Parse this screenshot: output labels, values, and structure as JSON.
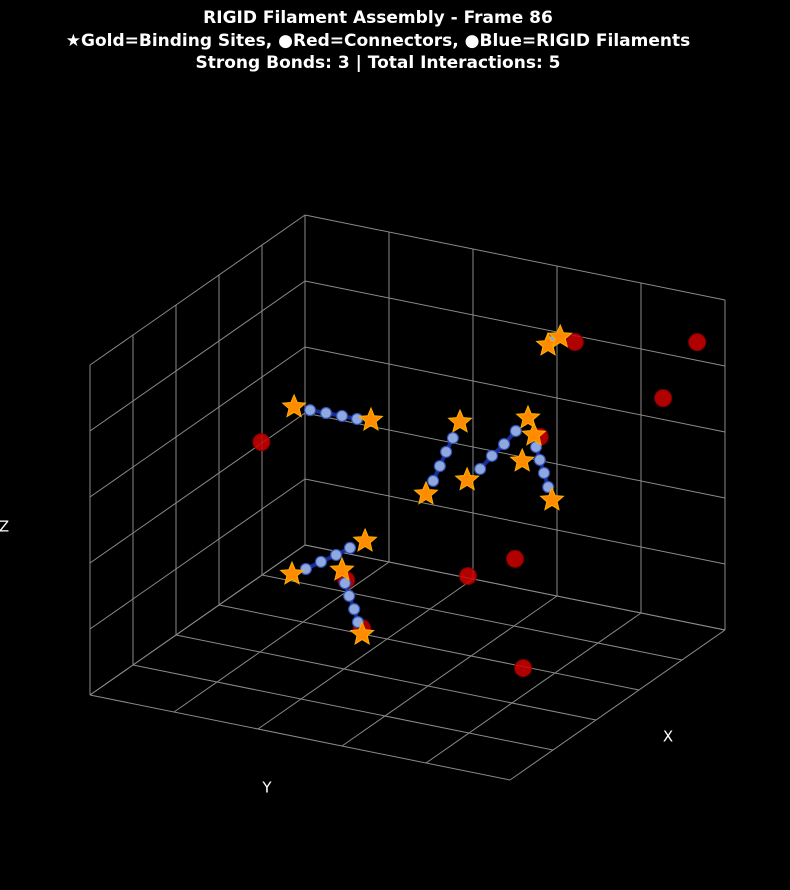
{
  "chart_data": {
    "type": "scatter3d",
    "title": "RIGID Filament Assembly - Frame 86",
    "subtitle": "★Gold=Binding Sites, ●Red=Connectors, ●Blue=RIGID Filaments",
    "annotation": "Strong Bonds: 3 | Total Interactions: 5",
    "xlabel": "X",
    "ylabel": "Y",
    "zlabel": "Z",
    "xlim": [
      0,
      10
    ],
    "ylim": [
      0,
      10
    ],
    "zlim": [
      0,
      10
    ],
    "xticks": [
      0,
      2,
      4,
      6,
      8,
      10
    ],
    "yticks": [
      0,
      2,
      4,
      6,
      8,
      10
    ],
    "zticks": [
      0,
      2,
      4,
      6,
      8,
      10
    ],
    "grid": true,
    "connectors": {
      "color": "#d00000",
      "x": [
        2,
        1,
        2,
        5,
        5,
        5,
        5,
        5,
        8,
        6
      ],
      "y": [
        7.45,
        9.85,
        9.55,
        1.52,
        8.15,
        7.56,
        6.44,
        3.54,
        9.29,
        4.43
      ],
      "z": [
        8.98,
        9.14,
        7.82,
        5.78,
        7.65,
        3.8,
        2.99,
        2.12,
        2.3,
        1.35
      ]
    },
    "binding_sites": {
      "color": "#ff8c00",
      "x": [
        5,
        5,
        5,
        5,
        5,
        5,
        5,
        5,
        2,
        2,
        5,
        5,
        5,
        5,
        5
      ],
      "y": [
        2.3,
        4.13,
        6.25,
        5.44,
        6.42,
        7.87,
        8.01,
        8.44,
        6.81,
        7.1,
        2.25,
        3.99,
        3.44,
        3.92,
        7.73
      ],
      "z": [
        7.05,
        7.12,
        7.61,
        5.22,
        5.9,
        8.15,
        7.67,
        5.81,
        8.72,
        9.04,
        1.97,
        3.42,
        2.4,
        0.58,
        6.81
      ]
    },
    "filaments": {
      "color": "#8fa8e0",
      "line_color": "#1a2a9a",
      "beads": [
        {
          "x": [
            5,
            5,
            5,
            5
          ],
          "y": [
            2.68,
            3.06,
            3.44,
            3.8
          ],
          "z": [
            7.05,
            7.06,
            7.07,
            7.07
          ]
        },
        {
          "x": [
            5,
            5,
            5,
            5
          ],
          "y": [
            6.08,
            5.92,
            5.77,
            5.61
          ],
          "z": [
            7.08,
            6.62,
            6.15,
            5.66
          ]
        },
        {
          "x": [
            5,
            5,
            5,
            5
          ],
          "y": [
            6.73,
            7.01,
            7.3,
            7.58
          ],
          "z": [
            6.31,
            6.78,
            7.21,
            7.68
          ]
        },
        {
          "x": [
            5,
            5,
            5,
            5
          ],
          "y": [
            8.06,
            8.15,
            8.25,
            8.35
          ],
          "z": [
            7.32,
            6.95,
            6.58,
            6.18
          ]
        },
        {
          "x": [
            2,
            2
          ],
          "y": [
            6.88,
            6.95
          ],
          "z": [
            8.83,
            8.91
          ]
        },
        {
          "x": [
            5,
            5,
            5,
            5
          ],
          "y": [
            2.58,
            2.94,
            3.3,
            3.63
          ],
          "z": [
            2.21,
            2.52,
            2.82,
            3.12
          ]
        },
        {
          "x": [
            5,
            5,
            5,
            5
          ],
          "y": [
            3.51,
            3.61,
            3.73,
            3.82
          ],
          "z": [
            2.02,
            1.66,
            1.29,
            0.92
          ]
        }
      ]
    }
  }
}
